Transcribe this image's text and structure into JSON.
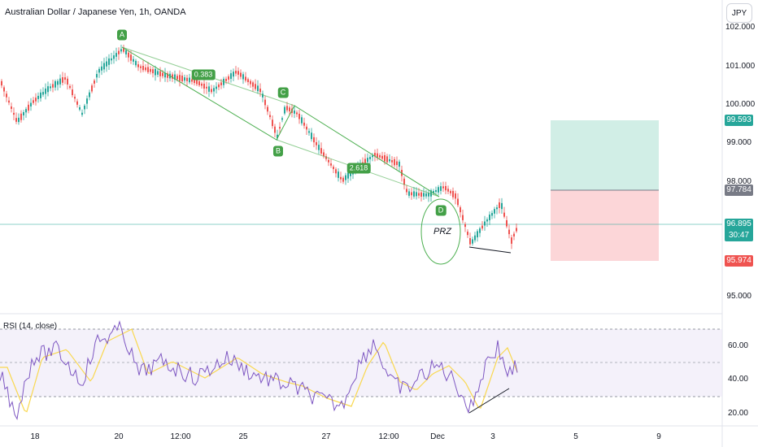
{
  "header": {
    "title": "Australian Dollar / Japanese Yen, 1h, OANDA",
    "currency": "JPY"
  },
  "price_axis": {
    "labels": [
      "102.000",
      "101.000",
      "100.000",
      "99.000",
      "98.000",
      "95.000"
    ]
  },
  "price_tags": {
    "target": "99.593",
    "entry": "97.784",
    "current": "96.895",
    "countdown": "30:47",
    "stop": "95.974"
  },
  "pattern": {
    "A": "A",
    "B": "B",
    "C": "C",
    "D": "D",
    "ratio1": "0.383",
    "ratio2": "2.618",
    "zone": "PRZ"
  },
  "rsi": {
    "title": "RSI (14, close)",
    "labels": [
      "60.00",
      "40.00",
      "20.00"
    ]
  },
  "time_axis": {
    "labels": [
      "18",
      "20",
      "12:00",
      "25",
      "27",
      "12:00",
      "Dec",
      "3",
      "5",
      "9"
    ]
  },
  "colors": {
    "up": "#26a69a",
    "down": "#ef5350",
    "pattern": "#4caf50",
    "rsi": "#7e57c2",
    "rsi_ma": "#f9d84f",
    "target_zone": "#d1eee6",
    "stop_zone": "#fcd6d8"
  }
}
